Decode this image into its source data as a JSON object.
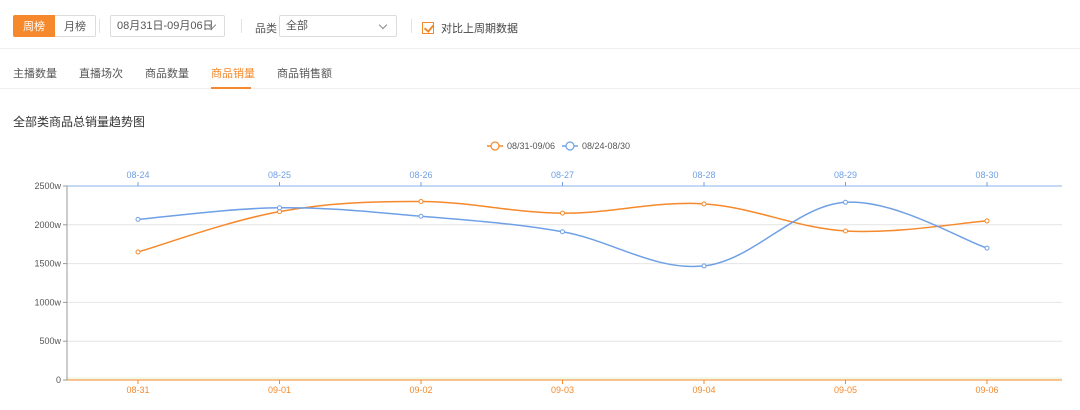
{
  "toolbar": {
    "week_tab": "周榜",
    "month_tab": "月榜",
    "date_range": "08月31日-09月06日",
    "category_label": "品类",
    "category_value": "全部",
    "compare_label": "对比上周期数据",
    "compare_checked": true
  },
  "tabs": [
    "主播数量",
    "直播场次",
    "商品数量",
    "商品销量",
    "商品销售额"
  ],
  "active_tab": "商品销量",
  "colors": {
    "accent": "#f5892b",
    "current_series": "#f5892b",
    "previous_series": "#6fa0e6"
  },
  "chart_data": {
    "type": "line",
    "title": "全部类商品总销量趋势图",
    "legend_position": "top-center",
    "grid": true,
    "ylim": [
      0,
      2500
    ],
    "y_ticks": [
      "0",
      "500w",
      "1000w",
      "1500w",
      "2000w",
      "2500w"
    ],
    "x_bottom": [
      "08-31",
      "09-01",
      "09-02",
      "09-03",
      "09-04",
      "09-05",
      "09-06"
    ],
    "x_top": [
      "08-24",
      "08-25",
      "08-26",
      "08-27",
      "08-28",
      "08-29",
      "08-30"
    ],
    "series": [
      {
        "name": "08/31-09/06",
        "color": "#f5892b",
        "axis": "bottom",
        "values": [
          1650,
          2170,
          2300,
          2150,
          2270,
          1920,
          2050
        ]
      },
      {
        "name": "08/24-08/30",
        "color": "#6fa0e6",
        "axis": "top",
        "values": [
          2070,
          2220,
          2110,
          1910,
          1470,
          2290,
          1700
        ]
      }
    ]
  }
}
